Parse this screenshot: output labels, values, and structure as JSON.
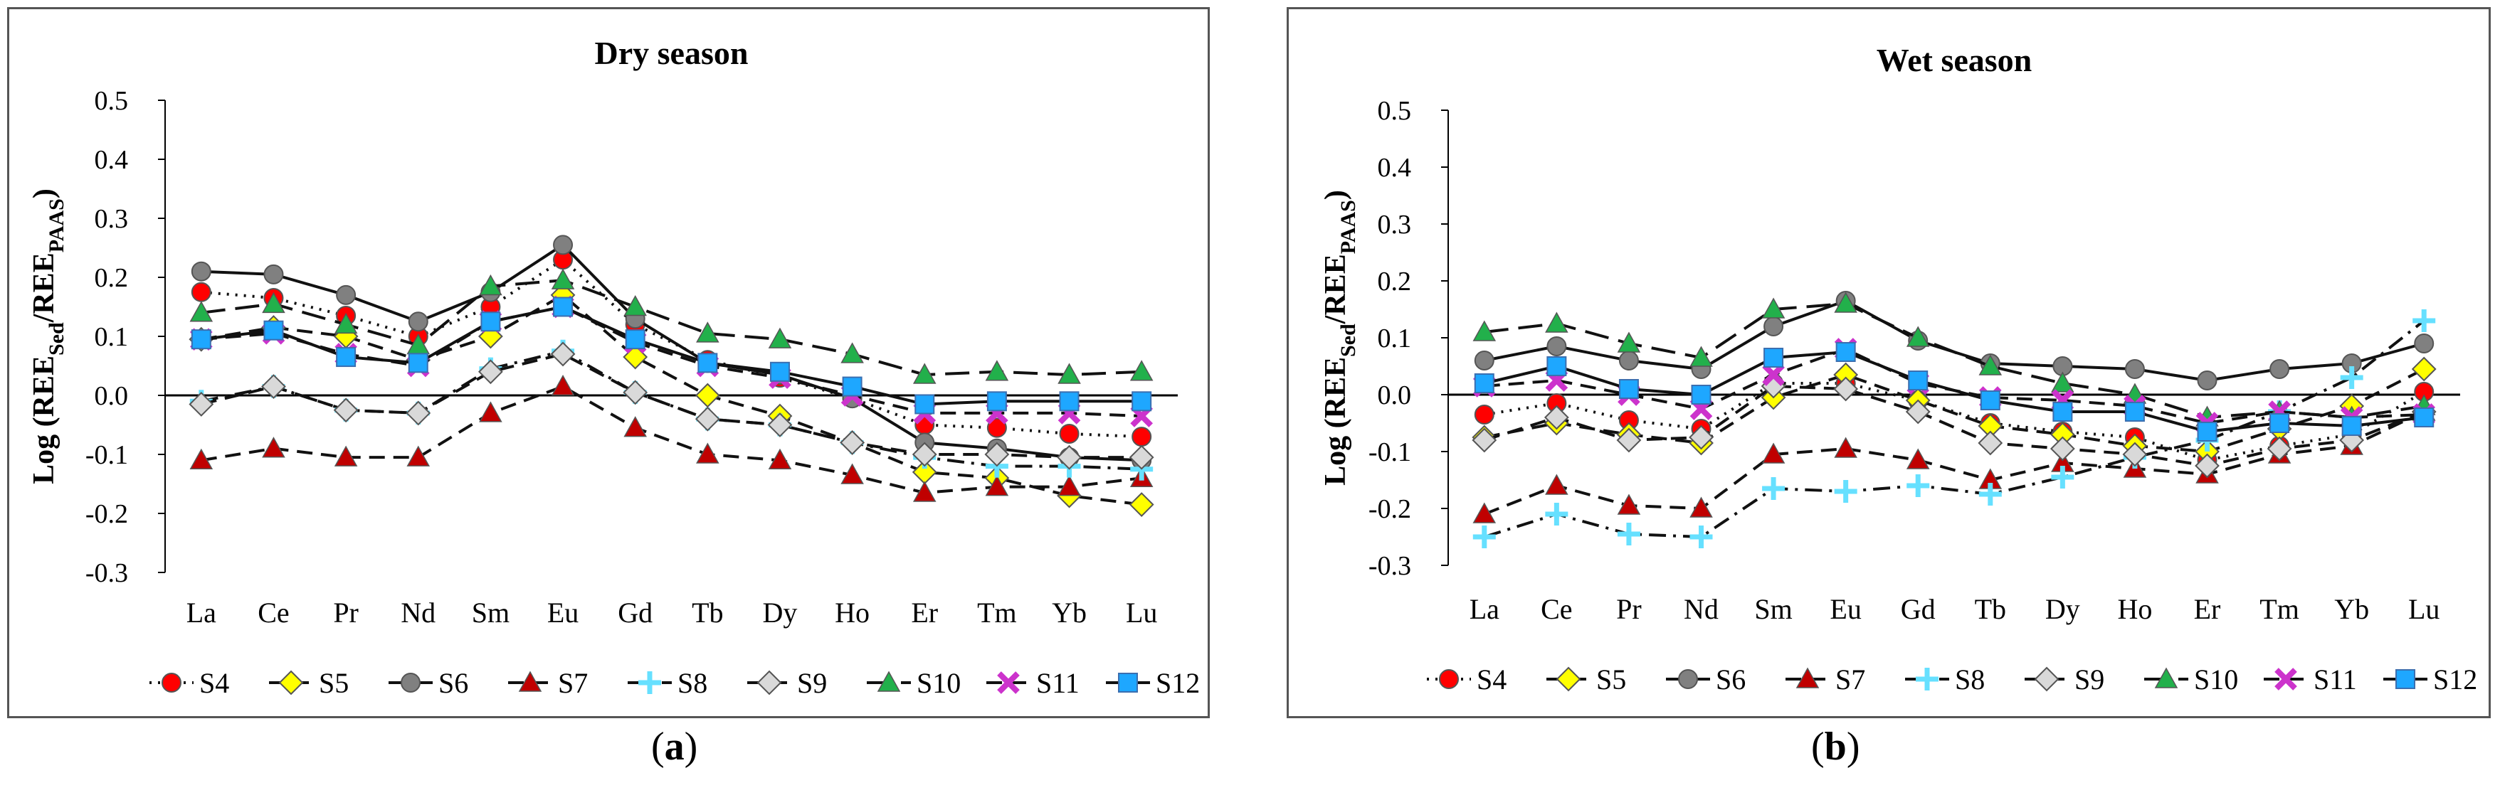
{
  "panels": [
    {
      "label_open": "(",
      "label_letter": "a",
      "label_close": ")"
    },
    {
      "label_open": "(",
      "label_letter": "b",
      "label_close": ")"
    }
  ],
  "series_styles": [
    {
      "name": "S4",
      "marker": "circle",
      "color": "#ff0000",
      "line": "dotted"
    },
    {
      "name": "S5",
      "marker": "diamond",
      "color": "#ffff00",
      "line": "dash"
    },
    {
      "name": "S6",
      "marker": "circle",
      "color": "#808080",
      "line": "solid"
    },
    {
      "name": "S7",
      "marker": "triangle",
      "color": "#c00000",
      "line": "dash"
    },
    {
      "name": "S8",
      "marker": "plus",
      "color": "#66e0ff",
      "line": "dashdot"
    },
    {
      "name": "S9",
      "marker": "diamond",
      "color": "#d9d9d9",
      "line": "dash"
    },
    {
      "name": "S10",
      "marker": "triangle",
      "color": "#22b04b",
      "line": "longdash"
    },
    {
      "name": "S11",
      "marker": "xbox",
      "color": "#cc33cc",
      "line": "dash"
    },
    {
      "name": "S12",
      "marker": "square",
      "color": "#1ea7ff",
      "line": "solid"
    }
  ],
  "chart_data": [
    {
      "type": "line",
      "title": "Dry season",
      "ylabel_main": "Log (REE",
      "ylabel_sub1": "Sed",
      "ylabel_mid": "/REE",
      "ylabel_sub2": "PAAS",
      "ylabel_end": ")",
      "ylim": [
        -0.3,
        0.5
      ],
      "yticks": [
        "0.5",
        "0.4",
        "0.3",
        "0.2",
        "0.1",
        "0.0",
        "-0.1",
        "-0.2",
        "-0.3"
      ],
      "categories": [
        "La",
        "Ce",
        "Pr",
        "Nd",
        "Sm",
        "Eu",
        "Gd",
        "Tb",
        "Dy",
        "Ho",
        "Er",
        "Tm",
        "Yb",
        "Lu"
      ],
      "legend": "bottom",
      "series": [
        {
          "name": "S4",
          "values": [
            0.175,
            0.165,
            0.135,
            0.1,
            0.15,
            0.23,
            0.12,
            0.06,
            0.03,
            -0.005,
            -0.05,
            -0.055,
            -0.065,
            -0.07
          ]
        },
        {
          "name": "S5",
          "values": [
            0.095,
            0.115,
            0.1,
            0.06,
            0.1,
            0.17,
            0.065,
            0.0,
            -0.035,
            -0.08,
            -0.13,
            -0.14,
            -0.17,
            -0.185
          ]
        },
        {
          "name": "S6",
          "values": [
            0.21,
            0.205,
            0.17,
            0.125,
            0.175,
            0.255,
            0.13,
            0.055,
            0.035,
            -0.005,
            -0.08,
            -0.09,
            -0.105,
            -0.11
          ]
        },
        {
          "name": "S7",
          "values": [
            -0.11,
            -0.09,
            -0.105,
            -0.105,
            -0.03,
            0.015,
            -0.055,
            -0.1,
            -0.11,
            -0.135,
            -0.165,
            -0.155,
            -0.155,
            -0.14
          ]
        },
        {
          "name": "S8",
          "values": [
            -0.01,
            0.015,
            -0.025,
            -0.03,
            0.045,
            0.075,
            0.005,
            -0.04,
            -0.05,
            -0.08,
            -0.105,
            -0.12,
            -0.12,
            -0.125
          ]
        },
        {
          "name": "S9",
          "values": [
            -0.015,
            0.015,
            -0.025,
            -0.03,
            0.04,
            0.07,
            0.005,
            -0.04,
            -0.05,
            -0.08,
            -0.1,
            -0.1,
            -0.105,
            -0.105
          ]
        },
        {
          "name": "S10",
          "values": [
            0.14,
            0.155,
            0.12,
            0.085,
            0.185,
            0.195,
            0.15,
            0.105,
            0.095,
            0.07,
            0.035,
            0.04,
            0.035,
            0.04
          ]
        },
        {
          "name": "S11",
          "values": [
            0.095,
            0.105,
            0.07,
            0.05,
            0.125,
            0.15,
            0.09,
            0.05,
            0.03,
            0.0,
            -0.03,
            -0.03,
            -0.03,
            -0.035
          ]
        },
        {
          "name": "S12",
          "values": [
            0.095,
            0.11,
            0.065,
            0.055,
            0.125,
            0.15,
            0.095,
            0.055,
            0.04,
            0.015,
            -0.015,
            -0.01,
            -0.01,
            -0.01
          ]
        }
      ]
    },
    {
      "type": "line",
      "title": "Wet season",
      "ylabel_main": "Log (REE",
      "ylabel_sub1": "Sed",
      "ylabel_mid": "/REE",
      "ylabel_sub2": "PAAS",
      "ylabel_end": ")",
      "ylim": [
        -0.3,
        0.5
      ],
      "yticks": [
        "0.5",
        "0.4",
        "0.3",
        "0.2",
        "0.1",
        "0.0",
        "-0.1",
        "-0.2",
        "-0.3"
      ],
      "categories": [
        "La",
        "Ce",
        "Pr",
        "Nd",
        "Sm",
        "Eu",
        "Gd",
        "Tb",
        "Dy",
        "Ho",
        "Er",
        "Tm",
        "Yb",
        "Lu"
      ],
      "legend": "bottom",
      "series": [
        {
          "name": "S4",
          "values": [
            -0.035,
            -0.015,
            -0.045,
            -0.06,
            0.02,
            0.02,
            -0.01,
            -0.05,
            -0.065,
            -0.075,
            -0.115,
            -0.09,
            -0.07,
            0.005
          ]
        },
        {
          "name": "S5",
          "values": [
            -0.075,
            -0.05,
            -0.07,
            -0.085,
            -0.005,
            0.035,
            -0.01,
            -0.055,
            -0.07,
            -0.09,
            -0.1,
            -0.06,
            -0.02,
            0.045
          ]
        },
        {
          "name": "S6",
          "values": [
            0.06,
            0.085,
            0.06,
            0.045,
            0.12,
            0.165,
            0.095,
            0.055,
            0.05,
            0.045,
            0.025,
            0.045,
            0.055,
            0.09
          ]
        },
        {
          "name": "S7",
          "values": [
            -0.21,
            -0.16,
            -0.195,
            -0.2,
            -0.105,
            -0.095,
            -0.115,
            -0.15,
            -0.12,
            -0.13,
            -0.14,
            -0.105,
            -0.09,
            -0.03
          ]
        },
        {
          "name": "S8",
          "values": [
            -0.25,
            -0.21,
            -0.245,
            -0.25,
            -0.165,
            -0.17,
            -0.16,
            -0.175,
            -0.145,
            -0.11,
            -0.08,
            -0.03,
            0.03,
            0.13
          ]
        },
        {
          "name": "S9",
          "values": [
            -0.08,
            -0.04,
            -0.08,
            -0.075,
            0.015,
            0.01,
            -0.03,
            -0.085,
            -0.095,
            -0.105,
            -0.125,
            -0.095,
            -0.08,
            -0.03
          ]
        },
        {
          "name": "S10",
          "values": [
            0.11,
            0.125,
            0.09,
            0.065,
            0.15,
            0.16,
            0.1,
            0.05,
            0.02,
            0.0,
            -0.04,
            -0.03,
            -0.04,
            -0.02
          ]
        },
        {
          "name": "S11",
          "values": [
            0.015,
            0.025,
            0.0,
            -0.025,
            0.035,
            0.08,
            0.02,
            -0.005,
            -0.01,
            -0.02,
            -0.05,
            -0.03,
            -0.04,
            -0.035
          ]
        },
        {
          "name": "S12",
          "values": [
            0.02,
            0.05,
            0.01,
            0.0,
            0.065,
            0.075,
            0.025,
            -0.01,
            -0.03,
            -0.03,
            -0.065,
            -0.05,
            -0.055,
            -0.04
          ]
        }
      ]
    }
  ]
}
